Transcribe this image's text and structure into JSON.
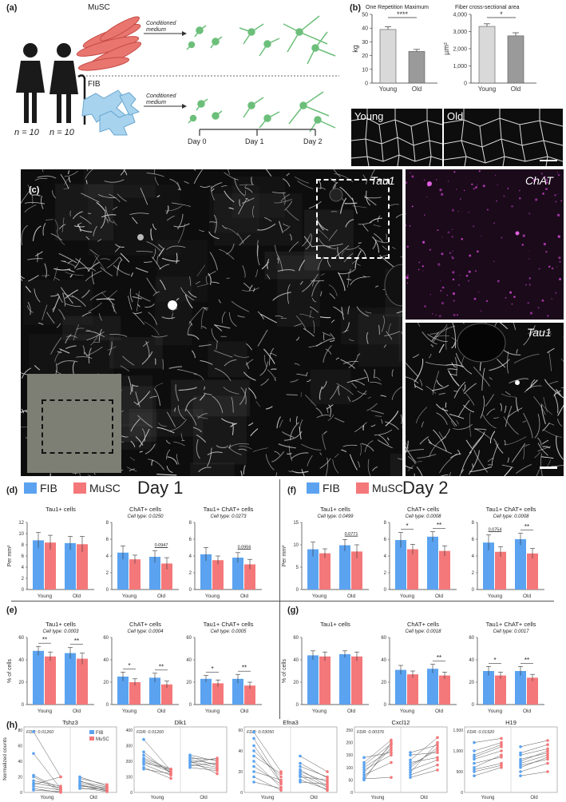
{
  "panel_a": {
    "label": "(a)",
    "group_label_left": "n = 10",
    "group_label_right": "n = 10",
    "cell_top": "MuSC",
    "cell_bottom": "FIB",
    "arrow_text_top": "Conditioned medium",
    "arrow_text_bottom": "Conditioned medium",
    "timeline": [
      "Day 0",
      "Day 1",
      "Day 2"
    ],
    "colors": {
      "muscle": "#e8766f",
      "fib": "#a7d3ee",
      "neuron": "#6cbf7a"
    }
  },
  "panel_b": {
    "label": "(b)",
    "micro_labels": [
      "Young",
      "Old"
    ],
    "chart_data": [
      {
        "type": "bar",
        "title": "One Repetition Maximum",
        "categories": [
          "Young",
          "Old"
        ],
        "values": [
          39,
          23
        ],
        "errors": [
          2,
          1.5
        ],
        "ylabel": "kg",
        "ylim": [
          0,
          50
        ],
        "yticks": [
          "0",
          "10",
          "20",
          "30",
          "40",
          "50"
        ],
        "significance": "****",
        "colors": [
          "#d9d9d9",
          "#9a9a9a"
        ]
      },
      {
        "type": "bar",
        "title": "Fiber cross-sectional area",
        "categories": [
          "Young",
          "Old"
        ],
        "values": [
          3300,
          2750
        ],
        "errors": [
          150,
          180
        ],
        "ylabel": "µm²",
        "ylim": [
          0,
          4000
        ],
        "yticks": [
          "0",
          "1,000",
          "2,000",
          "3,000",
          "4,000"
        ],
        "significance": "*",
        "colors": [
          "#d9d9d9",
          "#9a9a9a"
        ]
      }
    ]
  },
  "panel_c": {
    "label": "(c)",
    "main_stain": "Tau1",
    "side_top_stain": "ChAT",
    "side_bottom_stain": "Tau1"
  },
  "legend": {
    "fib": "FIB",
    "musc": "MuSC",
    "fib_color": "#5ba3f0",
    "musc_color": "#f4787a"
  },
  "day_labels": {
    "d": "Day 1",
    "f": "Day 2"
  },
  "panel_labels": {
    "d": "(d)",
    "e": "(e)",
    "f": "(f)",
    "g": "(g)",
    "h": "(h)"
  },
  "ylabels": {
    "per_mm2": "Per mm²",
    "pct": "% of cells",
    "norm": "Normalized counts"
  },
  "chart_data": [
    {
      "id": "d1",
      "type": "bar",
      "title": "Tau1+ cells",
      "subtitle": "",
      "categories": [
        "Young",
        "Old"
      ],
      "series": [
        {
          "name": "FIB",
          "values": [
            8.8,
            8.3
          ]
        },
        {
          "name": "MuSC",
          "values": [
            8.4,
            8.1
          ]
        }
      ],
      "errors": [
        [
          1.4,
          1.2
        ],
        [
          1.3,
          1.4
        ]
      ],
      "ylim": [
        0,
        12
      ],
      "yticks": [
        "0",
        "2",
        "4",
        "6",
        "8",
        "10",
        "12"
      ],
      "annotations": []
    },
    {
      "id": "d2",
      "type": "bar",
      "title": "ChAT+ cells",
      "subtitle": "Cell type: 0.0250",
      "categories": [
        "Young",
        "Old"
      ],
      "series": [
        {
          "name": "FIB",
          "values": [
            4.4,
            3.9
          ]
        },
        {
          "name": "MuSC",
          "values": [
            3.6,
            3.1
          ]
        }
      ],
      "errors": [
        [
          0.8,
          0.7
        ],
        [
          0.5,
          0.7
        ]
      ],
      "ylim": [
        0,
        8
      ],
      "yticks": [
        "0",
        "2",
        "4",
        "6",
        "8"
      ],
      "annotations": [
        {
          "cat": 1,
          "text": "0.0947"
        }
      ]
    },
    {
      "id": "d3",
      "type": "bar",
      "title": "Tau1+ ChAT+ cells",
      "subtitle": "Cell type: 0.0273",
      "categories": [
        "Young",
        "Old"
      ],
      "series": [
        {
          "name": "FIB",
          "values": [
            4.2,
            3.8
          ]
        },
        {
          "name": "MuSC",
          "values": [
            3.5,
            3.0
          ]
        }
      ],
      "errors": [
        [
          0.8,
          0.6
        ],
        [
          0.5,
          0.6
        ]
      ],
      "ylim": [
        0,
        8
      ],
      "yticks": [
        "0",
        "2",
        "4",
        "6",
        "8"
      ],
      "annotations": [
        {
          "cat": 1,
          "text": "0.0956"
        }
      ]
    },
    {
      "id": "f1",
      "type": "bar",
      "title": "Tau1+ cells",
      "subtitle": "Cell type: 0.0499",
      "categories": [
        "Young",
        "Old"
      ],
      "series": [
        {
          "name": "FIB",
          "values": [
            9.0,
            9.9
          ]
        },
        {
          "name": "MuSC",
          "values": [
            8.1,
            8.5
          ]
        }
      ],
      "errors": [
        [
          1.6,
          1.3
        ],
        [
          1.0,
          1.5
        ]
      ],
      "ylim": [
        0,
        15
      ],
      "yticks": [
        "0",
        "5",
        "10",
        "15"
      ],
      "annotations": [
        {
          "cat": 1,
          "text": "0.0771"
        }
      ]
    },
    {
      "id": "f2",
      "type": "bar",
      "title": "ChAT+ cells",
      "subtitle": "Cell type: 0.0008",
      "categories": [
        "Young",
        "Old"
      ],
      "series": [
        {
          "name": "FIB",
          "values": [
            5.9,
            6.3
          ]
        },
        {
          "name": "MuSC",
          "values": [
            4.8,
            4.6
          ]
        }
      ],
      "errors": [
        [
          0.9,
          0.6
        ],
        [
          0.6,
          0.6
        ]
      ],
      "ylim": [
        0,
        8
      ],
      "yticks": [
        "0",
        "2",
        "4",
        "6",
        "8"
      ],
      "annotations": [
        {
          "cat": 0,
          "text": "*"
        },
        {
          "cat": 1,
          "text": "**"
        }
      ]
    },
    {
      "id": "f3",
      "type": "bar",
      "title": "Tau1+ ChAT+ cells",
      "subtitle": "Cell type: 0.0008",
      "categories": [
        "Young",
        "Old"
      ],
      "series": [
        {
          "name": "FIB",
          "values": [
            5.6,
            6.0
          ]
        },
        {
          "name": "MuSC",
          "values": [
            4.5,
            4.3
          ]
        }
      ],
      "errors": [
        [
          0.9,
          0.7
        ],
        [
          0.6,
          0.6
        ]
      ],
      "ylim": [
        0,
        8
      ],
      "yticks": [
        "0",
        "2",
        "4",
        "6",
        "8"
      ],
      "annotations": [
        {
          "cat": 0,
          "text": "0.0754"
        },
        {
          "cat": 1,
          "text": "**"
        }
      ]
    },
    {
      "id": "e1",
      "type": "bar",
      "title": "Tau1+ cells",
      "subtitle": "Cell type: 0.0003",
      "categories": [
        "Young",
        "Old"
      ],
      "series": [
        {
          "name": "FIB",
          "values": [
            48,
            46
          ]
        },
        {
          "name": "MuSC",
          "values": [
            43,
            41
          ]
        }
      ],
      "errors": [
        [
          4,
          5
        ],
        [
          4,
          5
        ]
      ],
      "ylim": [
        0,
        60
      ],
      "yticks": [
        "0",
        "20",
        "40",
        "60"
      ],
      "annotations": [
        {
          "cat": 0,
          "text": "**"
        },
        {
          "cat": 1,
          "text": "**"
        }
      ]
    },
    {
      "id": "e2",
      "type": "bar",
      "title": "ChAT+ cells",
      "subtitle": "Cell type: 0.0004",
      "categories": [
        "Young",
        "Old"
      ],
      "series": [
        {
          "name": "FIB",
          "values": [
            25,
            24
          ]
        },
        {
          "name": "MuSC",
          "values": [
            20,
            18
          ]
        }
      ],
      "errors": [
        [
          4,
          4
        ],
        [
          3,
          3
        ]
      ],
      "ylim": [
        0,
        60
      ],
      "yticks": [
        "0",
        "20",
        "40",
        "60"
      ],
      "annotations": [
        {
          "cat": 0,
          "text": "*"
        },
        {
          "cat": 1,
          "text": "**"
        }
      ]
    },
    {
      "id": "e3",
      "type": "bar",
      "title": "Tau1+ ChAT+ cells",
      "subtitle": "Cell type: 0.0005",
      "categories": [
        "Young",
        "Old"
      ],
      "series": [
        {
          "name": "FIB",
          "values": [
            23,
            23
          ]
        },
        {
          "name": "MuSC",
          "values": [
            19,
            17
          ]
        }
      ],
      "errors": [
        [
          3,
          4
        ],
        [
          3,
          3
        ]
      ],
      "ylim": [
        0,
        60
      ],
      "yticks": [
        "0",
        "20",
        "40",
        "60"
      ],
      "annotations": [
        {
          "cat": 0,
          "text": "*"
        },
        {
          "cat": 1,
          "text": "**"
        }
      ]
    },
    {
      "id": "g1",
      "type": "bar",
      "title": "Tau1+ cells",
      "subtitle": "",
      "categories": [
        "Young",
        "Old"
      ],
      "series": [
        {
          "name": "FIB",
          "values": [
            44,
            45
          ]
        },
        {
          "name": "MuSC",
          "values": [
            43,
            43
          ]
        }
      ],
      "errors": [
        [
          4,
          3
        ],
        [
          4,
          4
        ]
      ],
      "ylim": [
        0,
        60
      ],
      "yticks": [
        "0",
        "20",
        "40",
        "60"
      ],
      "annotations": []
    },
    {
      "id": "g2",
      "type": "bar",
      "title": "ChAT+ cells",
      "subtitle": "Cell type: 0.0018",
      "categories": [
        "Young",
        "Old"
      ],
      "series": [
        {
          "name": "FIB",
          "values": [
            31,
            32
          ]
        },
        {
          "name": "MuSC",
          "values": [
            27,
            26
          ]
        }
      ],
      "errors": [
        [
          4,
          4
        ],
        [
          3,
          3
        ]
      ],
      "ylim": [
        0,
        60
      ],
      "yticks": [
        "0",
        "20",
        "40",
        "60"
      ],
      "annotations": [
        {
          "cat": 1,
          "text": "**"
        }
      ]
    },
    {
      "id": "g3",
      "type": "bar",
      "title": "Tau1+ ChAT+ cells",
      "subtitle": "Cell type: 0.0017",
      "categories": [
        "Young",
        "Old"
      ],
      "series": [
        {
          "name": "FIB",
          "values": [
            30,
            30
          ]
        },
        {
          "name": "MuSC",
          "values": [
            26,
            24
          ]
        }
      ],
      "errors": [
        [
          4,
          4
        ],
        [
          3,
          3
        ]
      ],
      "ylim": [
        0,
        60
      ],
      "yticks": [
        "0",
        "20",
        "40",
        "60"
      ],
      "annotations": [
        {
          "cat": 0,
          "text": "*"
        },
        {
          "cat": 1,
          "text": "**"
        }
      ]
    }
  ],
  "panel_h": {
    "legend": [
      "FIB",
      "MuSC"
    ],
    "charts": [
      {
        "title": "Tshz3",
        "fdr": "FDR: 0.01260",
        "ylim": [
          0,
          80
        ],
        "yticks": [
          "0",
          "20",
          "40",
          "60",
          "80"
        ],
        "young": [
          [
            78,
            20
          ],
          [
            50,
            5
          ],
          [
            20,
            2
          ],
          [
            15,
            8
          ],
          [
            10,
            20
          ],
          [
            8,
            3
          ],
          [
            5,
            0
          ],
          [
            3,
            1
          ],
          [
            22,
            4
          ],
          [
            12,
            6
          ]
        ],
        "old": [
          [
            20,
            8
          ],
          [
            15,
            3
          ],
          [
            12,
            5
          ],
          [
            10,
            2
          ],
          [
            8,
            6
          ],
          [
            6,
            1
          ],
          [
            5,
            4
          ],
          [
            14,
            7
          ],
          [
            18,
            10
          ],
          [
            9,
            2
          ]
        ]
      },
      {
        "title": "Dlk1",
        "fdr": "FDR: 0.01260",
        "ylim": [
          0,
          400
        ],
        "yticks": [
          "0",
          "100",
          "200",
          "300",
          "400"
        ],
        "young": [
          [
            340,
            140
          ],
          [
            260,
            120
          ],
          [
            220,
            150
          ],
          [
            200,
            130
          ],
          [
            180,
            110
          ],
          [
            160,
            90
          ],
          [
            210,
            140
          ],
          [
            240,
            130
          ],
          [
            190,
            150
          ],
          [
            150,
            120
          ]
        ],
        "old": [
          [
            240,
            200
          ],
          [
            210,
            180
          ],
          [
            200,
            160
          ],
          [
            190,
            220
          ],
          [
            180,
            150
          ],
          [
            170,
            190
          ],
          [
            220,
            210
          ],
          [
            160,
            140
          ],
          [
            230,
            170
          ],
          [
            200,
            120
          ]
        ]
      },
      {
        "title": "Efna3",
        "fdr": "FDR: 0.03050",
        "ylim": [
          0,
          60
        ],
        "yticks": [
          "0",
          "20",
          "40",
          "60"
        ],
        "young": [
          [
            58,
            20
          ],
          [
            52,
            10
          ],
          [
            40,
            15
          ],
          [
            30,
            5
          ],
          [
            25,
            8
          ],
          [
            20,
            12
          ],
          [
            15,
            2
          ],
          [
            10,
            4
          ],
          [
            35,
            18
          ],
          [
            45,
            9
          ]
        ],
        "old": [
          [
            35,
            20
          ],
          [
            25,
            15
          ],
          [
            20,
            10
          ],
          [
            18,
            5
          ],
          [
            15,
            12
          ],
          [
            12,
            3
          ],
          [
            10,
            8
          ],
          [
            28,
            14
          ],
          [
            22,
            6
          ],
          [
            16,
            2
          ]
        ]
      },
      {
        "title": "Cxcl12",
        "fdr": "FDR: 0.00376",
        "ylim": [
          0,
          250
        ],
        "yticks": [
          "0",
          "50",
          "100",
          "150",
          "200",
          "250"
        ],
        "young": [
          [
            50,
            200
          ],
          [
            60,
            180
          ],
          [
            80,
            190
          ],
          [
            100,
            170
          ],
          [
            120,
            210
          ],
          [
            140,
            160
          ],
          [
            90,
            150
          ],
          [
            70,
            120
          ],
          [
            110,
            195
          ],
          [
            55,
            60
          ]
        ],
        "old": [
          [
            80,
            200
          ],
          [
            100,
            180
          ],
          [
            130,
            220
          ],
          [
            150,
            160
          ],
          [
            120,
            140
          ],
          [
            90,
            130
          ],
          [
            110,
            170
          ],
          [
            70,
            110
          ],
          [
            160,
            190
          ],
          [
            60,
            90
          ]
        ]
      },
      {
        "title": "H19",
        "fdr": "FDR: 0.01920",
        "ylim": [
          0,
          1500
        ],
        "yticks": [
          "0",
          "500",
          "1,000",
          "1,500"
        ],
        "young": [
          [
            1200,
            1300
          ],
          [
            900,
            1150
          ],
          [
            800,
            1000
          ],
          [
            700,
            850
          ],
          [
            600,
            900
          ],
          [
            550,
            700
          ],
          [
            500,
            650
          ],
          [
            850,
            1100
          ],
          [
            1000,
            1200
          ],
          [
            400,
            600
          ]
        ],
        "old": [
          [
            1100,
            1250
          ],
          [
            900,
            1050
          ],
          [
            800,
            950
          ],
          [
            700,
            900
          ],
          [
            650,
            800
          ],
          [
            600,
            850
          ],
          [
            500,
            700
          ],
          [
            950,
            1150
          ],
          [
            400,
            500
          ],
          [
            750,
            1000
          ]
        ]
      }
    ],
    "xcats": [
      "Young",
      "Old"
    ]
  }
}
